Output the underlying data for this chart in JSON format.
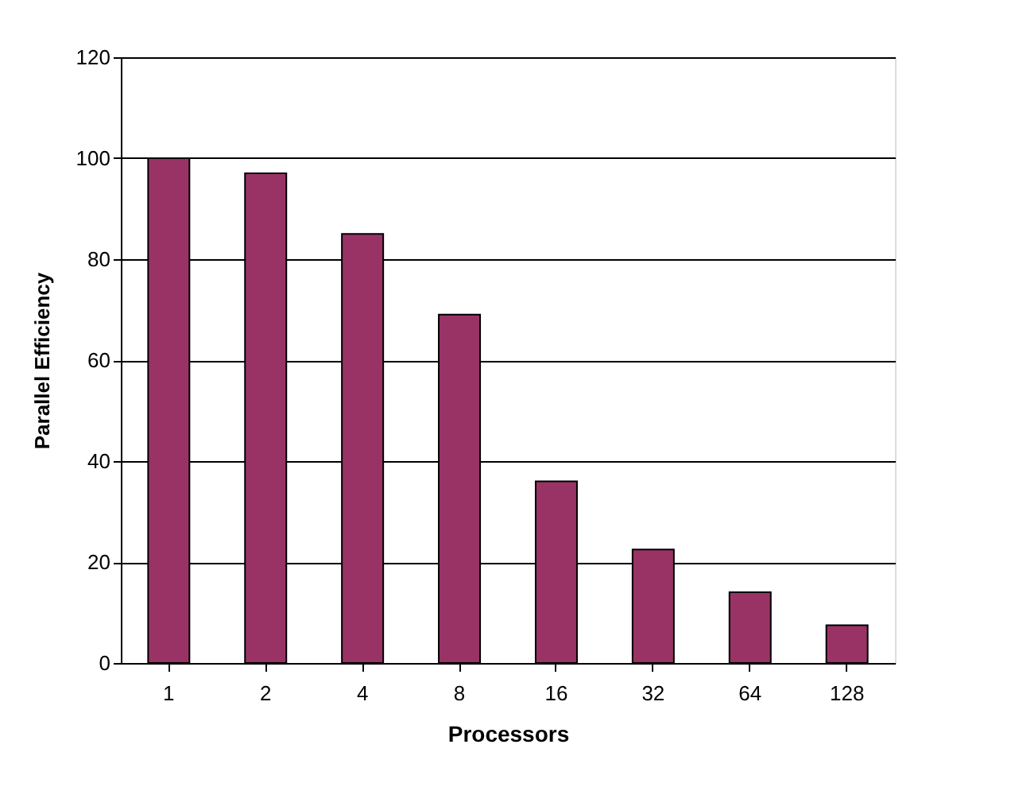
{
  "chart_data": {
    "type": "bar",
    "xlabel": "Processors",
    "ylabel": "Parallel Efficiency",
    "categories": [
      "1",
      "2",
      "4",
      "8",
      "16",
      "32",
      "64",
      "128"
    ],
    "values": [
      100,
      97,
      85,
      69,
      36,
      22.5,
      14,
      7.5
    ],
    "color": "#993366",
    "ylim": [
      0,
      120
    ],
    "yticks": [
      0,
      20,
      40,
      60,
      80,
      100,
      120
    ],
    "grid": "y"
  }
}
